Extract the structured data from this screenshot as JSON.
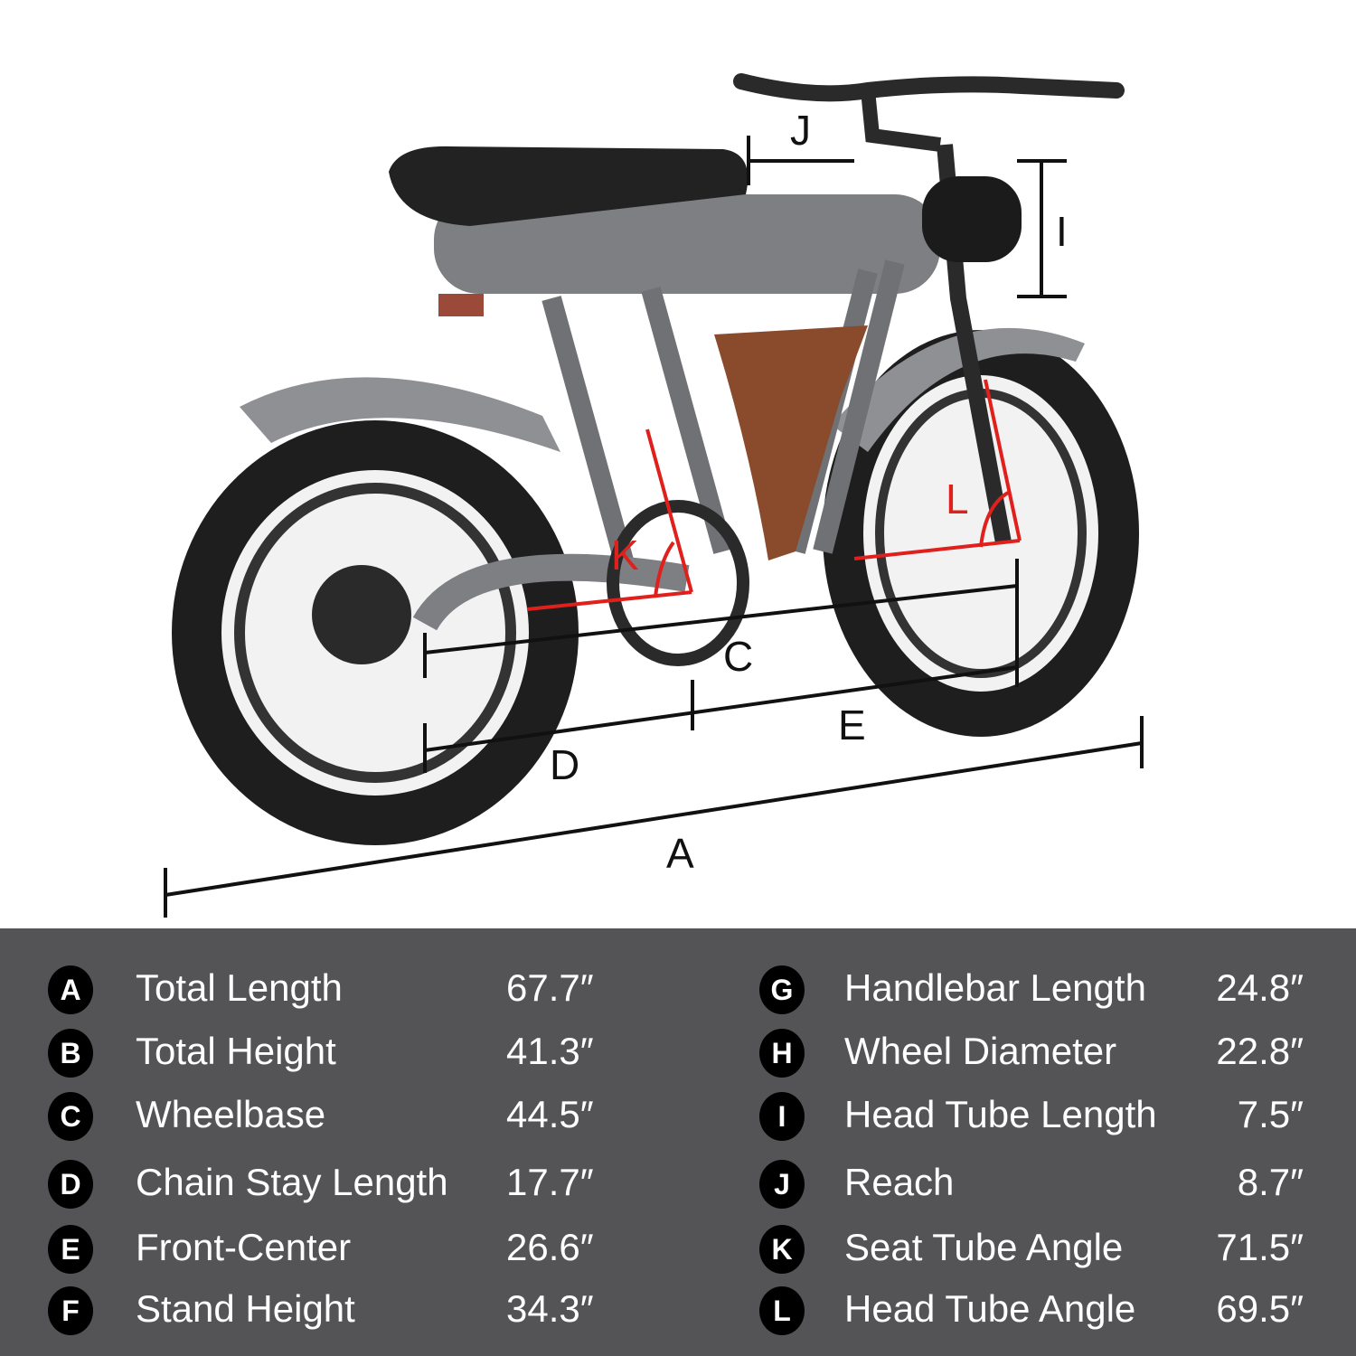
{
  "diagram": {
    "labels": {
      "A": "A",
      "C": "C",
      "D": "D",
      "E": "E",
      "I": "I",
      "J": "J",
      "K": "K",
      "L": "L"
    },
    "colors": {
      "frame": "#7d7f83",
      "tire": "#222222",
      "bag": "#8a4a2c",
      "angle_lines": "#e0201c",
      "dimension_lines": "#111111"
    }
  },
  "specs": {
    "left": [
      {
        "key": "A",
        "label": "Total Length",
        "value": "67.7″"
      },
      {
        "key": "B",
        "label": "Total Height",
        "value": "41.3″"
      },
      {
        "key": "C",
        "label": "Wheelbase",
        "value": "44.5″"
      },
      {
        "key": "D",
        "label": "Chain Stay Length",
        "value": "17.7″"
      },
      {
        "key": "E",
        "label": "Front-Center",
        "value": "26.6″"
      },
      {
        "key": "F",
        "label": "Stand Height",
        "value": "34.3″"
      }
    ],
    "right": [
      {
        "key": "G",
        "label": "Handlebar Length",
        "value": "24.8″"
      },
      {
        "key": "H",
        "label": "Wheel Diameter",
        "value": "22.8″"
      },
      {
        "key": "I",
        "label": "Head Tube Length",
        "value": "7.5″"
      },
      {
        "key": "J",
        "label": "Reach",
        "value": "8.7″"
      },
      {
        "key": "K",
        "label": "Seat Tube Angle",
        "value": "71.5″"
      },
      {
        "key": "L",
        "label": "Head Tube Angle",
        "value": "69.5″"
      }
    ]
  },
  "panel_color": "#545457"
}
